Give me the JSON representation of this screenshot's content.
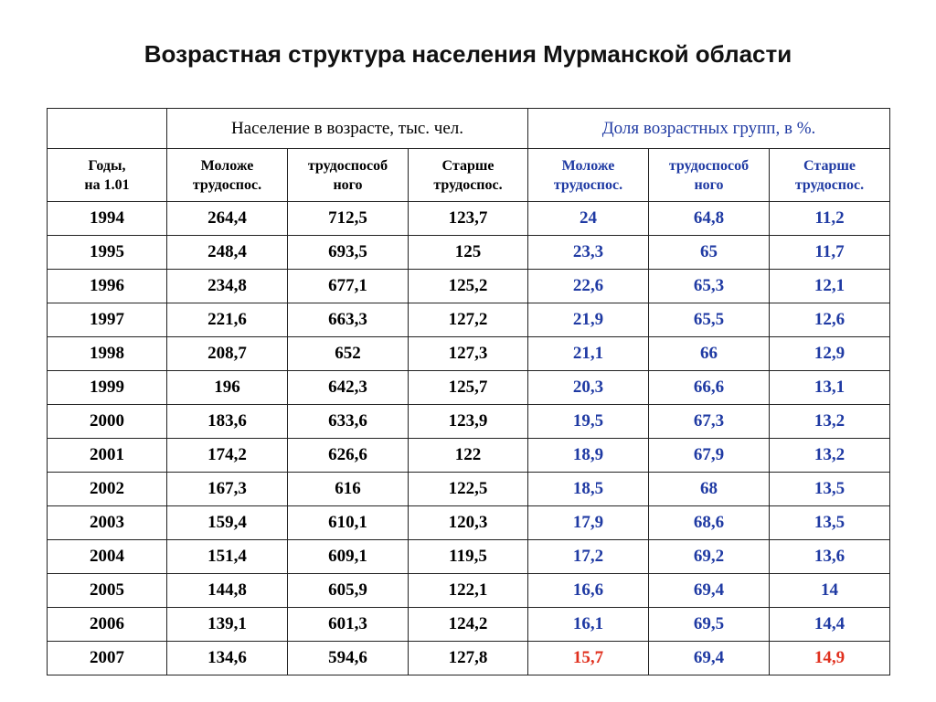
{
  "title": "Возрастная структура населения Мурманской области",
  "table": {
    "group_headers": {
      "population": "Население в возрасте, тыс. чел.",
      "shares": "Доля возрастных групп, в %."
    },
    "col_headers": {
      "years": [
        "Годы,",
        "на 1.01"
      ],
      "pop_young": [
        "Моложе",
        "трудоспос."
      ],
      "pop_work": [
        "трудоспособ",
        "ного"
      ],
      "pop_old": [
        "Старше",
        "трудоспос."
      ],
      "pct_young": [
        "Моложе",
        "трудоспос."
      ],
      "pct_work": [
        "трудоспособ",
        "ного"
      ],
      "pct_old": [
        "Старше",
        "трудоспос."
      ]
    },
    "rows": [
      {
        "year": "1994",
        "pop_young": "264,4",
        "pop_work": "712,5",
        "pop_old": "123,7",
        "pct_young": "24",
        "pct_work": "64,8",
        "pct_old": "11,2"
      },
      {
        "year": "1995",
        "pop_young": "248,4",
        "pop_work": "693,5",
        "pop_old": "125",
        "pct_young": "23,3",
        "pct_work": "65",
        "pct_old": "11,7"
      },
      {
        "year": "1996",
        "pop_young": "234,8",
        "pop_work": "677,1",
        "pop_old": "125,2",
        "pct_young": "22,6",
        "pct_work": "65,3",
        "pct_old": "12,1"
      },
      {
        "year": "1997",
        "pop_young": "221,6",
        "pop_work": "663,3",
        "pop_old": "127,2",
        "pct_young": "21,9",
        "pct_work": "65,5",
        "pct_old": "12,6"
      },
      {
        "year": "1998",
        "pop_young": "208,7",
        "pop_work": "652",
        "pop_old": "127,3",
        "pct_young": "21,1",
        "pct_work": "66",
        "pct_old": "12,9"
      },
      {
        "year": "1999",
        "pop_young": "196",
        "pop_work": "642,3",
        "pop_old": "125,7",
        "pct_young": "20,3",
        "pct_work": "66,6",
        "pct_old": "13,1"
      },
      {
        "year": "2000",
        "pop_young": "183,6",
        "pop_work": "633,6",
        "pop_old": "123,9",
        "pct_young": "19,5",
        "pct_work": "67,3",
        "pct_old": "13,2"
      },
      {
        "year": "2001",
        "pop_young": "174,2",
        "pop_work": "626,6",
        "pop_old": "122",
        "pct_young": "18,9",
        "pct_work": "67,9",
        "pct_old": "13,2"
      },
      {
        "year": "2002",
        "pop_young": "167,3",
        "pop_work": "616",
        "pop_old": "122,5",
        "pct_young": "18,5",
        "pct_work": "68",
        "pct_old": "13,5"
      },
      {
        "year": "2003",
        "pop_young": "159,4",
        "pop_work": "610,1",
        "pop_old": "120,3",
        "pct_young": "17,9",
        "pct_work": "68,6",
        "pct_old": "13,5"
      },
      {
        "year": "2004",
        "pop_young": "151,4",
        "pop_work": "609,1",
        "pop_old": "119,5",
        "pct_young": "17,2",
        "pct_work": "69,2",
        "pct_old": "13,6"
      },
      {
        "year": "2005",
        "pop_young": "144,8",
        "pop_work": "605,9",
        "pop_old": "122,1",
        "pct_young": "16,6",
        "pct_work": "69,4",
        "pct_old": "14"
      },
      {
        "year": "2006",
        "pop_young": "139,1",
        "pop_work": "601,3",
        "pop_old": "124,2",
        "pct_young": "16,1",
        "pct_work": "69,5",
        "pct_old": "14,4"
      },
      {
        "year": "2007",
        "pop_young": "134,6",
        "pop_work": "594,6",
        "pop_old": "127,8",
        "pct_young": "15,7",
        "pct_work": "69,4",
        "pct_old": "14,9"
      }
    ],
    "colors": {
      "percent_text": "#1f3aa3",
      "highlight_text": "#e0301e",
      "body_text": "#000000"
    },
    "highlighted_cells": [
      {
        "year": "2007",
        "column": "pct_young"
      },
      {
        "year": "2007",
        "column": "pct_old"
      }
    ]
  }
}
